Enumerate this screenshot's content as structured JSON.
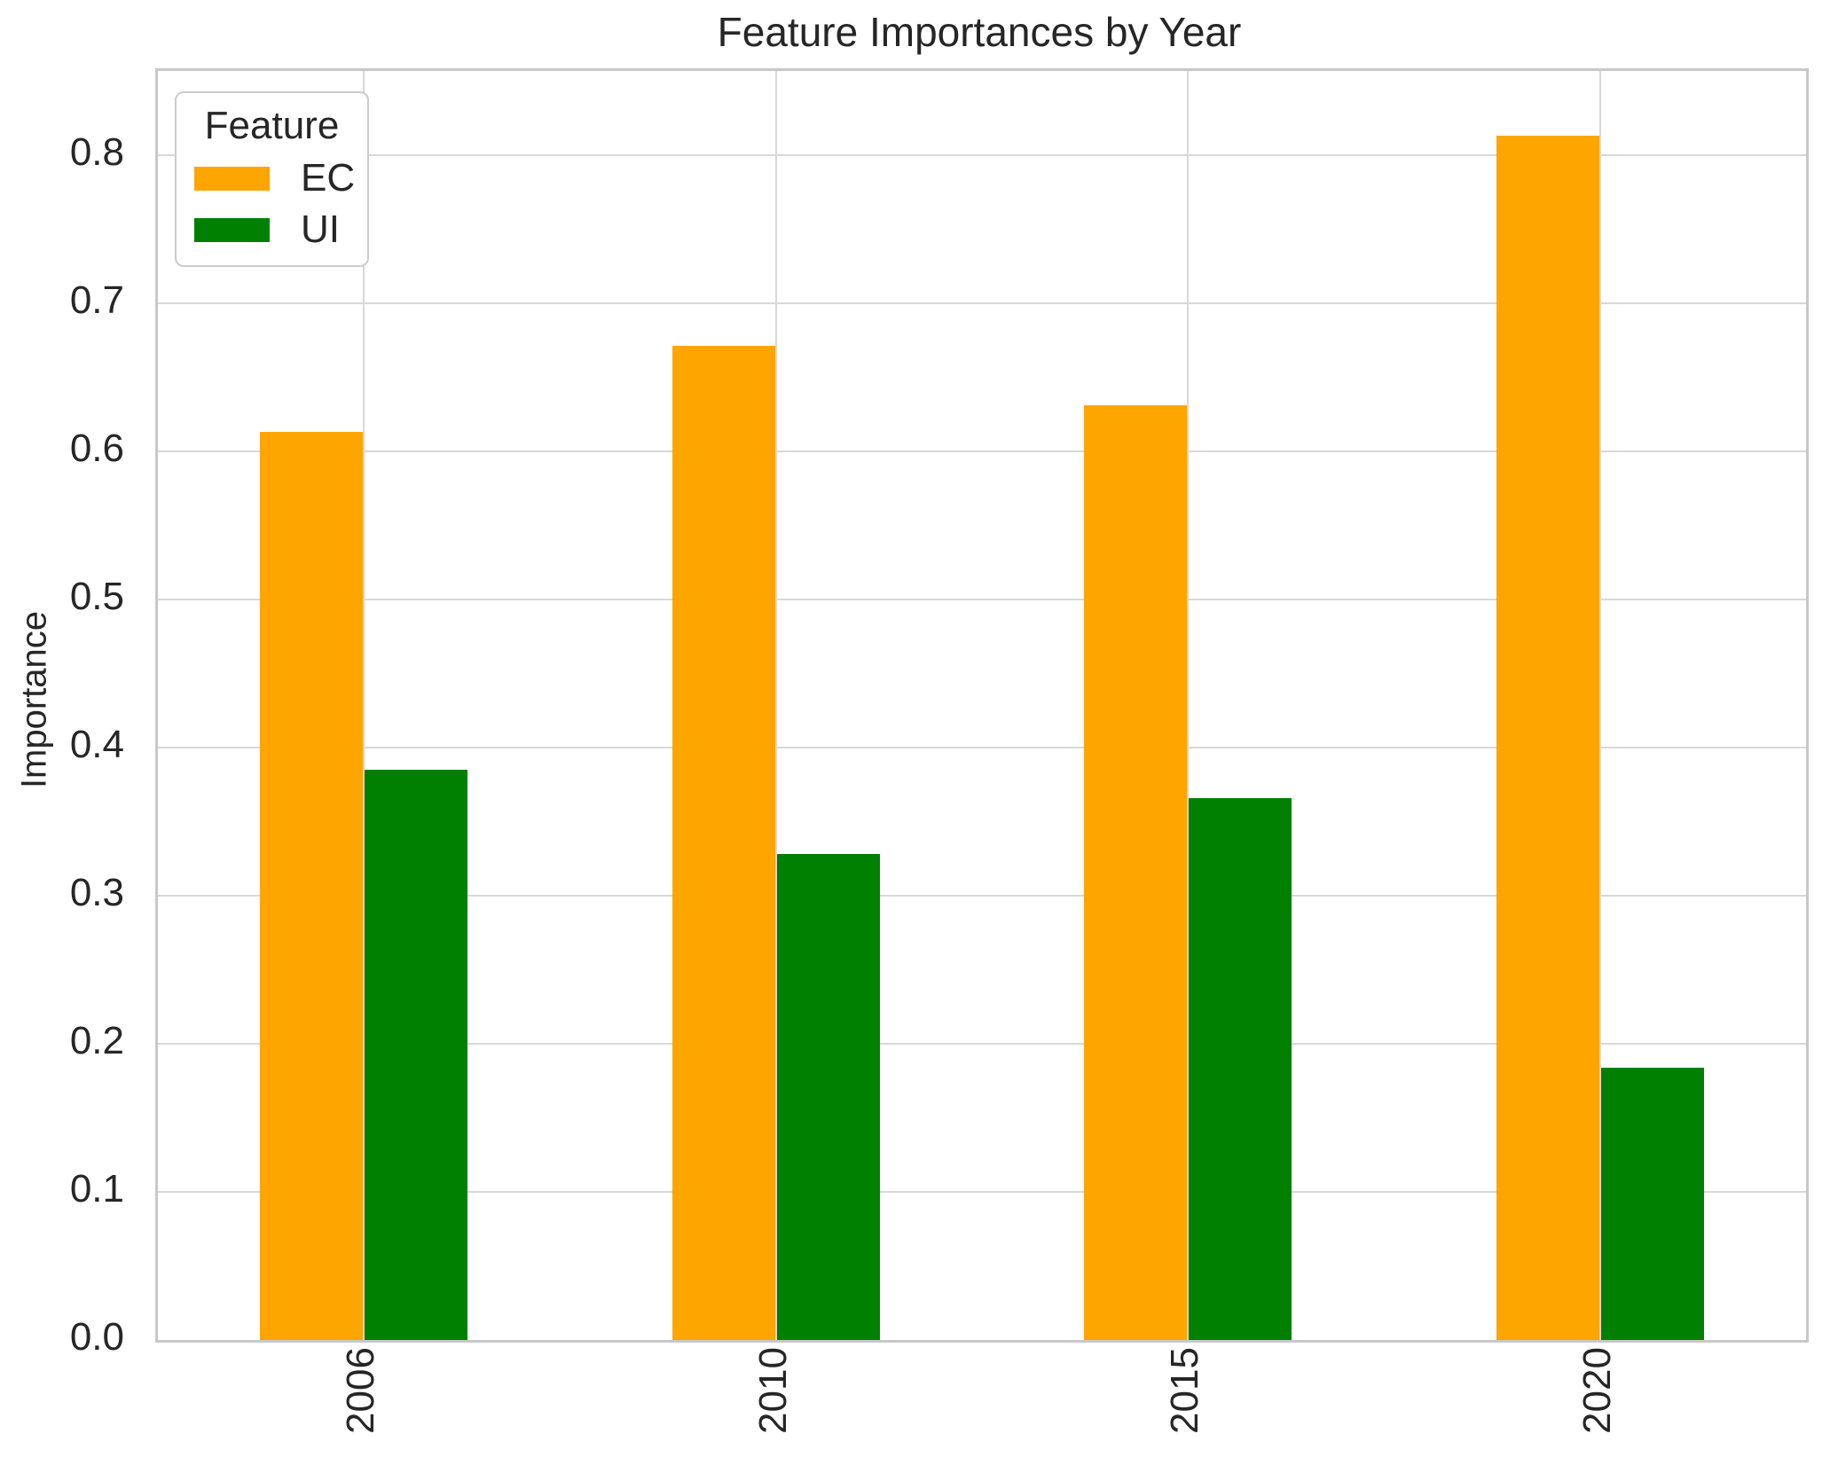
{
  "title": "Feature Importances by Year",
  "ylabel": "Importance",
  "legend": {
    "title": "Feature",
    "entries": [
      {
        "label": "EC",
        "color": "#FFA500"
      },
      {
        "label": "UI",
        "color": "#008000"
      }
    ]
  },
  "colors": {
    "ec_bar": "#FFA500",
    "ui_bar": "#008000",
    "gridline": "#d8d8d8",
    "axis_frame": "#c8c8c8",
    "text": "#262626",
    "background": "#ffffff"
  },
  "chart_data": {
    "type": "bar",
    "title": "Feature Importances by Year",
    "xlabel": "",
    "ylabel": "Importance",
    "categories": [
      "2006",
      "2010",
      "2015",
      "2020"
    ],
    "series": [
      {
        "name": "EC",
        "color": "#FFA500",
        "values": [
          0.613,
          0.671,
          0.631,
          0.813
        ]
      },
      {
        "name": "UI",
        "color": "#008000",
        "values": [
          0.385,
          0.328,
          0.366,
          0.184
        ]
      }
    ],
    "ylim": [
      0,
      0.857
    ],
    "yticks": [
      "0.0",
      "0.1",
      "0.2",
      "0.3",
      "0.4",
      "0.5",
      "0.6",
      "0.7",
      "0.8"
    ],
    "grid": true,
    "legend_title": "Feature",
    "legend_position": "upper left",
    "bar_group_width": 0.5,
    "x_tick_rotation": 90
  }
}
